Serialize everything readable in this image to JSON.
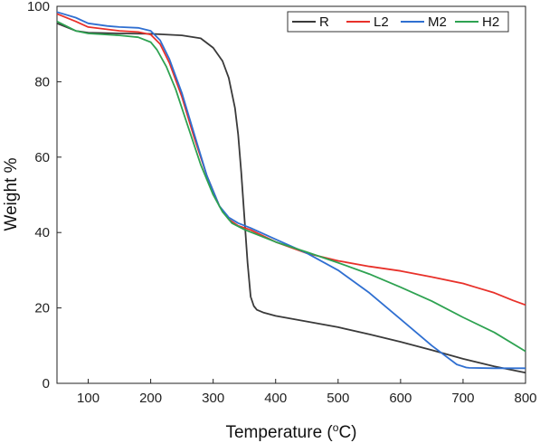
{
  "chart_data": {
    "type": "line",
    "xlabel": "Temperature (",
    "xlabel_sup": "o",
    "xlabel_unit": "C)",
    "ylabel": "Weight %",
    "xlim": [
      50,
      800
    ],
    "ylim": [
      0,
      100
    ],
    "xticks": [
      100,
      200,
      300,
      400,
      500,
      600,
      700,
      800
    ],
    "yticks": [
      0,
      20,
      40,
      60,
      80,
      100
    ],
    "grid": false,
    "legend_position": "top-right",
    "series": [
      {
        "name": "R",
        "color": "#3a3a3a",
        "x": [
          50,
          80,
          100,
          150,
          200,
          250,
          280,
          300,
          315,
          325,
          335,
          340,
          345,
          350,
          355,
          360,
          365,
          370,
          380,
          400,
          450,
          500,
          550,
          600,
          650,
          700,
          750,
          800
        ],
        "y": [
          95.5,
          93.5,
          93,
          92.8,
          92.7,
          92.3,
          91.5,
          89,
          85.5,
          81,
          73,
          66,
          56,
          44,
          32,
          23,
          20.5,
          19.5,
          18.8,
          17.9,
          16.4,
          14.9,
          13,
          11,
          8.8,
          6.5,
          4.5,
          2.8
        ]
      },
      {
        "name": "L2",
        "color": "#e8312a",
        "x": [
          50,
          80,
          100,
          150,
          180,
          200,
          215,
          230,
          250,
          270,
          290,
          310,
          325,
          340,
          360,
          400,
          450,
          500,
          550,
          600,
          650,
          700,
          720,
          750,
          780,
          800
        ],
        "y": [
          98,
          96,
          94.5,
          93.5,
          93.2,
          92.5,
          90,
          85,
          76,
          65,
          55,
          47,
          43.5,
          41.8,
          40.7,
          37.5,
          34.5,
          32.5,
          31,
          29.8,
          28.2,
          26.5,
          25.5,
          24,
          22,
          20.8
        ]
      },
      {
        "name": "M2",
        "color": "#2f6fd1",
        "x": [
          50,
          80,
          100,
          130,
          150,
          180,
          200,
          215,
          230,
          250,
          270,
          290,
          310,
          325,
          340,
          360,
          400,
          450,
          500,
          550,
          600,
          650,
          690,
          705,
          710,
          750,
          800
        ],
        "y": [
          98.5,
          97,
          95.5,
          94.8,
          94.5,
          94.3,
          93.5,
          91,
          86,
          77,
          66,
          55,
          47,
          44,
          42.5,
          41.2,
          38.2,
          34.5,
          30,
          24,
          17,
          10,
          5,
          4.2,
          4.1,
          4,
          4
        ]
      },
      {
        "name": "H2",
        "color": "#2ea251",
        "x": [
          50,
          80,
          100,
          150,
          180,
          200,
          210,
          225,
          240,
          260,
          280,
          300,
          315,
          330,
          350,
          400,
          450,
          500,
          550,
          600,
          650,
          700,
          750,
          800
        ],
        "y": [
          96,
          93.5,
          92.8,
          92.3,
          91.8,
          90.5,
          88.5,
          84,
          78,
          68,
          58,
          50,
          45.5,
          42.5,
          40.8,
          37.5,
          34.8,
          32,
          29,
          25.5,
          21.8,
          17.5,
          13.5,
          8.5
        ]
      }
    ]
  }
}
